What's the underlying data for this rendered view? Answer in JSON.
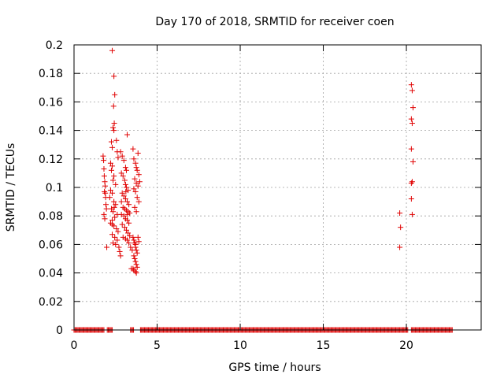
{
  "chart_data": {
    "type": "scatter",
    "title": "Day 170 of 2018, SRMTID for receiver coen",
    "xlabel": "GPS time / hours",
    "ylabel": "SRMTID / TECUs",
    "xlim": [
      0,
      24.5
    ],
    "ylim": [
      0,
      0.2
    ],
    "xticks": [
      0,
      5,
      10,
      15,
      20
    ],
    "xtick_labels": [
      "0",
      "5",
      "10",
      "15",
      "20"
    ],
    "yticks": [
      0,
      0.02,
      0.04,
      0.06,
      0.08,
      0.1,
      0.12,
      0.14,
      0.16,
      0.18,
      0.2
    ],
    "ytick_labels": [
      "0",
      "0.02",
      "0.04",
      "0.06",
      "0.08",
      "0.1",
      "0.12",
      "0.14",
      "0.16",
      "0.18",
      "0.2"
    ],
    "grid": true,
    "marker": "+",
    "color": "#e00000",
    "series": [
      {
        "name": "SRMTID",
        "points": [
          [
            1.75,
            0.122
          ],
          [
            1.78,
            0.119
          ],
          [
            1.8,
            0.113
          ],
          [
            1.82,
            0.108
          ],
          [
            1.85,
            0.104
          ],
          [
            1.87,
            0.101
          ],
          [
            1.88,
            0.096
          ],
          [
            1.9,
            0.093
          ],
          [
            1.92,
            0.088
          ],
          [
            1.95,
            0.085
          ],
          [
            1.8,
            0.081
          ],
          [
            1.85,
            0.078
          ],
          [
            1.97,
            0.058
          ],
          [
            1.83,
            0.097
          ],
          [
            2.3,
            0.196
          ],
          [
            2.4,
            0.178
          ],
          [
            2.45,
            0.165
          ],
          [
            2.38,
            0.157
          ],
          [
            2.42,
            0.145
          ],
          [
            2.35,
            0.142
          ],
          [
            2.4,
            0.14
          ],
          [
            2.55,
            0.133
          ],
          [
            2.25,
            0.132
          ],
          [
            2.3,
            0.128
          ],
          [
            2.6,
            0.125
          ],
          [
            2.65,
            0.121
          ],
          [
            2.2,
            0.117
          ],
          [
            2.3,
            0.115
          ],
          [
            2.25,
            0.112
          ],
          [
            2.4,
            0.108
          ],
          [
            2.35,
            0.105
          ],
          [
            2.5,
            0.102
          ],
          [
            2.2,
            0.098
          ],
          [
            2.3,
            0.096
          ],
          [
            2.15,
            0.093
          ],
          [
            2.4,
            0.09
          ],
          [
            2.5,
            0.088
          ],
          [
            2.25,
            0.085
          ],
          [
            2.35,
            0.083
          ],
          [
            2.6,
            0.081
          ],
          [
            2.45,
            0.079
          ],
          [
            2.3,
            0.077
          ],
          [
            2.2,
            0.075
          ],
          [
            2.4,
            0.073
          ],
          [
            2.55,
            0.071
          ],
          [
            2.65,
            0.069
          ],
          [
            2.3,
            0.067
          ],
          [
            2.45,
            0.065
          ],
          [
            2.6,
            0.063
          ],
          [
            2.35,
            0.061
          ],
          [
            2.5,
            0.06
          ],
          [
            2.7,
            0.058
          ],
          [
            2.75,
            0.055
          ],
          [
            2.8,
            0.052
          ],
          [
            2.3,
            0.074
          ],
          [
            2.42,
            0.086
          ],
          [
            2.8,
            0.125
          ],
          [
            2.9,
            0.122
          ],
          [
            3.0,
            0.119
          ],
          [
            3.1,
            0.114
          ],
          [
            3.15,
            0.112
          ],
          [
            3.2,
            0.137
          ],
          [
            2.85,
            0.11
          ],
          [
            2.95,
            0.108
          ],
          [
            3.05,
            0.105
          ],
          [
            3.1,
            0.102
          ],
          [
            3.15,
            0.1
          ],
          [
            3.25,
            0.098
          ],
          [
            2.9,
            0.096
          ],
          [
            3.0,
            0.094
          ],
          [
            3.1,
            0.092
          ],
          [
            3.2,
            0.09
          ],
          [
            3.3,
            0.088
          ],
          [
            2.95,
            0.086
          ],
          [
            3.05,
            0.085
          ],
          [
            3.15,
            0.084
          ],
          [
            3.25,
            0.083
          ],
          [
            3.35,
            0.082
          ],
          [
            2.85,
            0.081
          ],
          [
            3.0,
            0.08
          ],
          [
            3.1,
            0.078
          ],
          [
            3.2,
            0.077
          ],
          [
            3.3,
            0.075
          ],
          [
            2.9,
            0.074
          ],
          [
            3.05,
            0.072
          ],
          [
            3.15,
            0.07
          ],
          [
            3.25,
            0.068
          ],
          [
            3.35,
            0.066
          ],
          [
            2.95,
            0.065
          ],
          [
            3.1,
            0.064
          ],
          [
            3.2,
            0.063
          ],
          [
            3.3,
            0.061
          ],
          [
            3.4,
            0.058
          ],
          [
            3.5,
            0.056
          ],
          [
            2.85,
            0.09
          ],
          [
            3.12,
            0.097
          ],
          [
            3.22,
            0.081
          ],
          [
            3.55,
            0.127
          ],
          [
            3.6,
            0.12
          ],
          [
            3.7,
            0.117
          ],
          [
            3.75,
            0.114
          ],
          [
            3.8,
            0.112
          ],
          [
            3.85,
            0.124
          ],
          [
            3.9,
            0.109
          ],
          [
            3.65,
            0.106
          ],
          [
            3.75,
            0.103
          ],
          [
            3.85,
            0.101
          ],
          [
            3.95,
            0.104
          ],
          [
            3.6,
            0.099
          ],
          [
            3.7,
            0.097
          ],
          [
            3.8,
            0.093
          ],
          [
            3.9,
            0.09
          ],
          [
            3.65,
            0.086
          ],
          [
            3.75,
            0.083
          ],
          [
            3.55,
            0.065
          ],
          [
            3.6,
            0.063
          ],
          [
            3.65,
            0.061
          ],
          [
            3.7,
            0.058
          ],
          [
            3.75,
            0.056
          ],
          [
            3.8,
            0.054
          ],
          [
            3.6,
            0.052
          ],
          [
            3.65,
            0.05
          ],
          [
            3.7,
            0.048
          ],
          [
            3.75,
            0.046
          ],
          [
            3.8,
            0.044
          ],
          [
            3.6,
            0.042
          ],
          [
            3.7,
            0.041
          ],
          [
            3.75,
            0.04
          ],
          [
            3.55,
            0.043
          ],
          [
            3.85,
            0.065
          ],
          [
            3.9,
            0.062
          ],
          [
            3.7,
            0.06
          ],
          [
            3.45,
            0.043
          ],
          [
            19.6,
            0.082
          ],
          [
            19.65,
            0.072
          ],
          [
            19.6,
            0.058
          ],
          [
            20.3,
            0.172
          ],
          [
            20.35,
            0.168
          ],
          [
            20.4,
            0.156
          ],
          [
            20.3,
            0.148
          ],
          [
            20.35,
            0.145
          ],
          [
            20.3,
            0.127
          ],
          [
            20.4,
            0.118
          ],
          [
            20.35,
            0.104
          ],
          [
            20.3,
            0.103
          ],
          [
            20.3,
            0.092
          ],
          [
            20.35,
            0.081
          ]
        ],
        "zero_segments": [
          [
            0,
            1.8
          ],
          [
            2.0,
            2.3
          ],
          [
            3.4,
            3.6
          ],
          [
            4.0,
            20.1
          ],
          [
            20.3,
            22.8
          ]
        ]
      }
    ]
  }
}
